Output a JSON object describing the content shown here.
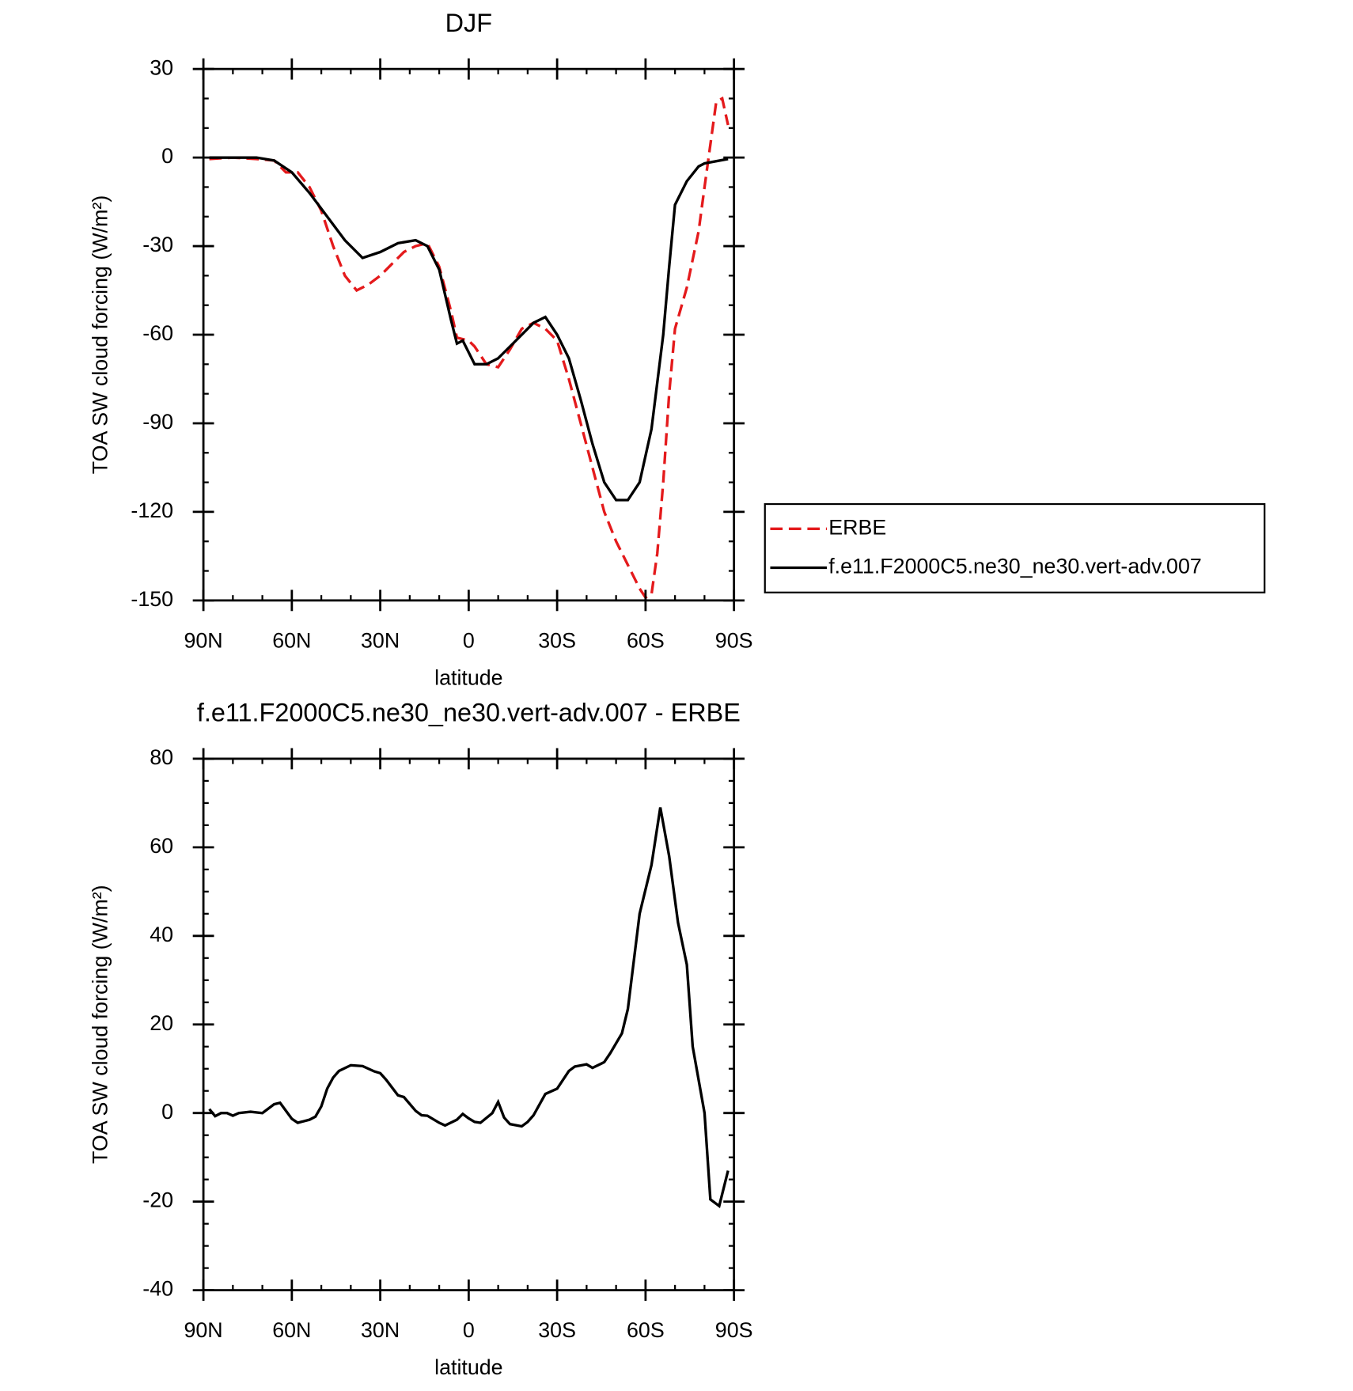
{
  "chart_data": [
    {
      "type": "line",
      "title": "DJF",
      "xlabel": "latitude",
      "ylabel": "TOA SW cloud forcing (W/m²)",
      "xlim": [
        90,
        -90
      ],
      "xticks": [
        {
          "value": 90,
          "label": "90N"
        },
        {
          "value": 60,
          "label": "60N"
        },
        {
          "value": 30,
          "label": "30N"
        },
        0,
        {
          "value": -30,
          "label": "30S"
        },
        {
          "value": -60,
          "label": "60S"
        },
        {
          "value": -90,
          "label": "90S"
        }
      ],
      "ylim": [
        -150,
        30
      ],
      "yticks": [
        -150,
        -120,
        -90,
        -60,
        -30,
        0,
        30
      ],
      "legend": "right",
      "series": [
        {
          "name": "ERBE",
          "color": "#e41a1c",
          "dashed": true,
          "x": [
            88,
            80,
            72,
            66,
            62,
            58,
            54,
            50,
            46,
            42,
            38,
            34,
            30,
            26,
            22,
            18,
            14,
            10,
            6,
            4,
            0,
            -2,
            -6,
            -10,
            -14,
            -18,
            -22,
            -26,
            -30,
            -34,
            -38,
            -42,
            -46,
            -50,
            -54,
            -58,
            -60,
            -62,
            -64,
            -66,
            -68,
            -70,
            -74,
            -78,
            -80,
            -84,
            -86,
            -88
          ],
          "values": [
            -0.5,
            0,
            -0.5,
            -1,
            -5,
            -5,
            -10,
            -18,
            -30,
            -40,
            -45,
            -43,
            -40,
            -36,
            -32,
            -30,
            -29,
            -37,
            -52,
            -61,
            -62,
            -64,
            -70,
            -71,
            -65,
            -58,
            -56,
            -58,
            -62,
            -75,
            -90,
            -105,
            -120,
            -130,
            -138,
            -146,
            -149,
            -148,
            -134,
            -110,
            -80,
            -58,
            -44,
            -25,
            -10,
            19,
            20,
            11
          ]
        },
        {
          "name": "f.e11.F2000C5.ne30_ne30.vert-adv.007",
          "color": "#000000",
          "dashed": false,
          "x": [
            88,
            80,
            72,
            66,
            60,
            54,
            48,
            42,
            36,
            30,
            24,
            18,
            14,
            10,
            6,
            4,
            2,
            -2,
            -6,
            -10,
            -16,
            -22,
            -26,
            -30,
            -34,
            -38,
            -42,
            -46,
            -50,
            -54,
            -58,
            -62,
            -66,
            -68,
            -70,
            -74,
            -78,
            -80,
            -88
          ],
          "values": [
            0,
            0,
            0,
            -1,
            -5,
            -12,
            -20,
            -28,
            -34,
            -32,
            -29,
            -28,
            -30,
            -38,
            -55,
            -63,
            -62,
            -70,
            -70,
            -68,
            -62,
            -56,
            -54,
            -60,
            -68,
            -82,
            -97,
            -110,
            -116,
            -116,
            -110,
            -92,
            -60,
            -37,
            -16,
            -8,
            -3,
            -2,
            -0.5
          ]
        }
      ]
    },
    {
      "type": "line",
      "title": "f.e11.F2000C5.ne30_ne30.vert-adv.007 - ERBE",
      "xlabel": "latitude",
      "ylabel": "TOA SW cloud forcing (W/m²)",
      "xlim": [
        90,
        -90
      ],
      "xticks": [
        {
          "value": 90,
          "label": "90N"
        },
        {
          "value": 60,
          "label": "60N"
        },
        {
          "value": 30,
          "label": "30N"
        },
        0,
        {
          "value": -30,
          "label": "30S"
        },
        {
          "value": -60,
          "label": "60S"
        },
        {
          "value": -90,
          "label": "90S"
        }
      ],
      "ylim": [
        -40,
        80
      ],
      "yticks": [
        -40,
        -20,
        0,
        20,
        40,
        60,
        80
      ],
      "series": [
        {
          "color": "#000000",
          "dashed": false,
          "x": [
            88,
            86,
            84,
            82,
            80,
            78,
            74,
            70,
            66,
            64,
            60,
            58,
            54,
            52,
            50,
            48,
            46,
            44,
            40,
            36,
            32,
            30,
            28,
            24,
            22,
            18,
            16,
            14,
            10,
            8,
            4,
            2,
            0,
            -2,
            -4,
            -8,
            -10,
            -12,
            -14,
            -18,
            -20,
            -22,
            -26,
            -30,
            -34,
            -36,
            -40,
            -42,
            -46,
            -48,
            -52,
            -54,
            -58,
            -62,
            -65,
            -68,
            -71,
            -74,
            -76,
            -80,
            -82,
            -85,
            -88
          ],
          "values": [
            0.9,
            -0.7,
            0,
            0,
            -0.6,
            0,
            0.3,
            0,
            2,
            2.3,
            -1.3,
            -2.2,
            -1.5,
            -0.8,
            1.5,
            5.5,
            8,
            9.5,
            10.8,
            10.6,
            9.4,
            9,
            7.5,
            4,
            3.6,
            0.5,
            -0.5,
            -0.6,
            -2.2,
            -2.8,
            -1.5,
            -0.2,
            -1.2,
            -2,
            -2.2,
            0,
            2.5,
            -1,
            -2.5,
            -3,
            -2,
            -0.5,
            4.3,
            5.5,
            9.5,
            10.5,
            11,
            10.2,
            11.5,
            13.5,
            18,
            23.5,
            45,
            56,
            69,
            58,
            43,
            33.5,
            15,
            0,
            -19.5,
            -21,
            -13
          ]
        }
      ]
    }
  ]
}
